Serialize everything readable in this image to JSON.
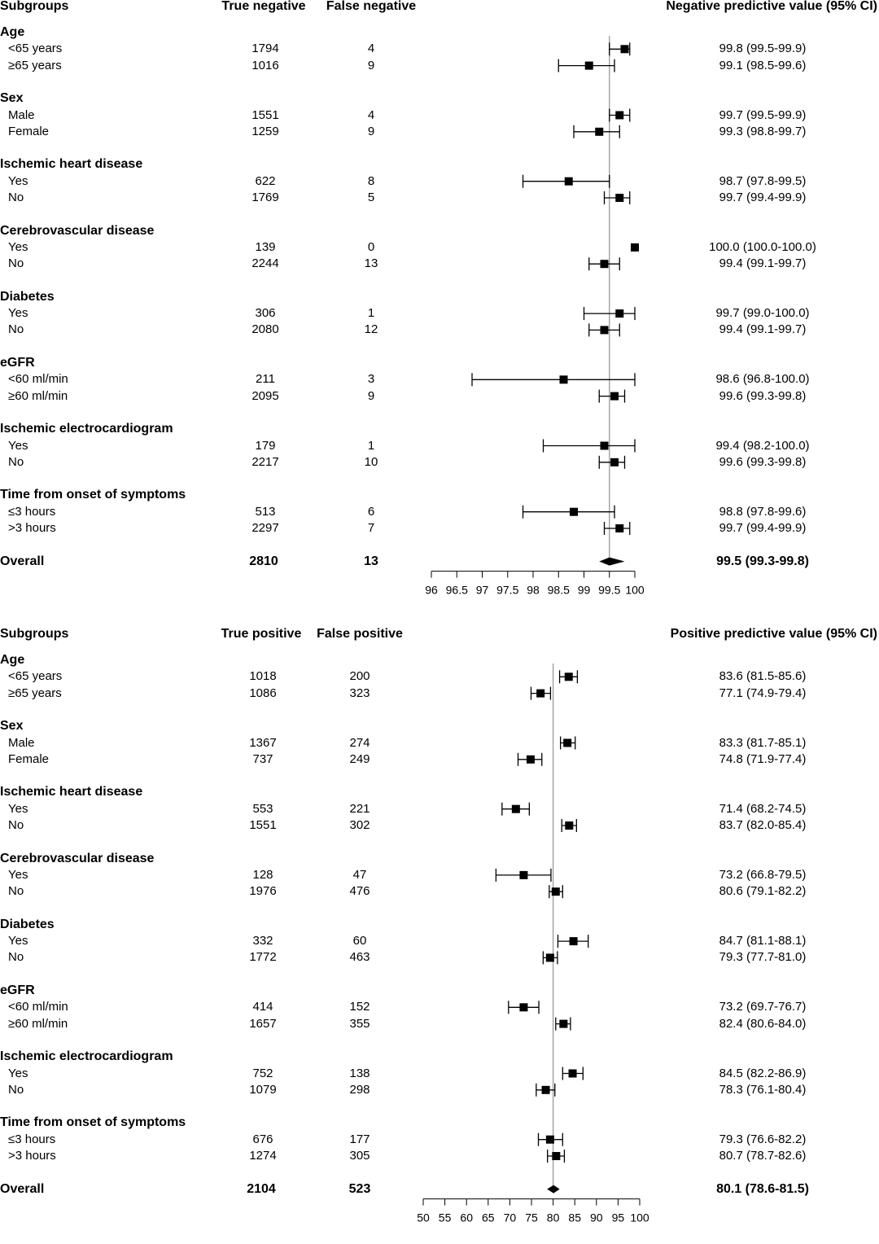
{
  "chart_data": [
    {
      "type": "forest",
      "headers": {
        "subgroups": "Subgroups",
        "col1": "True negative",
        "col2": "False negative",
        "estimate": "Negative predictive value (95% CI)"
      },
      "xlim": [
        96,
        100
      ],
      "reference_line": 99.5,
      "ticks": [
        "96",
        "96.5",
        "97",
        "97.5",
        "98",
        "98.5",
        "99",
        "99.5",
        "100"
      ],
      "tick_values": [
        96,
        96.5,
        97,
        97.5,
        98,
        98.5,
        99,
        99.5,
        100
      ],
      "groups": [
        {
          "name": "Age",
          "rows": [
            {
              "label": "<65 years",
              "n1": "1794",
              "n2": "4",
              "est": 99.8,
              "lo": 99.5,
              "hi": 99.9,
              "text": "99.8 (99.5-99.9)"
            },
            {
              "label": "≥65 years",
              "n1": "1016",
              "n2": "9",
              "est": 99.1,
              "lo": 98.5,
              "hi": 99.6,
              "text": "99.1 (98.5-99.6)"
            }
          ]
        },
        {
          "name": "Sex",
          "rows": [
            {
              "label": "Male",
              "n1": "1551",
              "n2": "4",
              "est": 99.7,
              "lo": 99.5,
              "hi": 99.9,
              "text": "99.7 (99.5-99.9)"
            },
            {
              "label": "Female",
              "n1": "1259",
              "n2": "9",
              "est": 99.3,
              "lo": 98.8,
              "hi": 99.7,
              "text": "99.3 (98.8-99.7)"
            }
          ]
        },
        {
          "name": "Ischemic heart disease",
          "rows": [
            {
              "label": "Yes",
              "n1": "622",
              "n2": "8",
              "est": 98.7,
              "lo": 97.8,
              "hi": 99.5,
              "text": "98.7 (97.8-99.5)"
            },
            {
              "label": "No",
              "n1": "1769",
              "n2": "5",
              "est": 99.7,
              "lo": 99.4,
              "hi": 99.9,
              "text": "99.7 (99.4-99.9)"
            }
          ]
        },
        {
          "name": "Cerebrovascular disease",
          "rows": [
            {
              "label": "Yes",
              "n1": "139",
              "n2": "0",
              "est": 100.0,
              "lo": 100.0,
              "hi": 100.0,
              "text": "100.0 (100.0-100.0)"
            },
            {
              "label": "No",
              "n1": "2244",
              "n2": "13",
              "est": 99.4,
              "lo": 99.1,
              "hi": 99.7,
              "text": "99.4 (99.1-99.7)"
            }
          ]
        },
        {
          "name": "Diabetes",
          "rows": [
            {
              "label": "Yes",
              "n1": "306",
              "n2": "1",
              "est": 99.7,
              "lo": 99.0,
              "hi": 100.0,
              "text": "99.7 (99.0-100.0)"
            },
            {
              "label": "No",
              "n1": "2080",
              "n2": "12",
              "est": 99.4,
              "lo": 99.1,
              "hi": 99.7,
              "text": "99.4 (99.1-99.7)"
            }
          ]
        },
        {
          "name": "eGFR",
          "rows": [
            {
              "label": "<60 ml/min",
              "n1": "211",
              "n2": "3",
              "est": 98.6,
              "lo": 96.8,
              "hi": 100.0,
              "text": "98.6 (96.8-100.0)"
            },
            {
              "label": "≥60 ml/min",
              "n1": "2095",
              "n2": "9",
              "est": 99.6,
              "lo": 99.3,
              "hi": 99.8,
              "text": "99.6 (99.3-99.8)"
            }
          ]
        },
        {
          "name": "Ischemic electrocardiogram",
          "rows": [
            {
              "label": "Yes",
              "n1": "179",
              "n2": "1",
              "est": 99.4,
              "lo": 98.2,
              "hi": 100.0,
              "text": "99.4 (98.2-100.0)"
            },
            {
              "label": "No",
              "n1": "2217",
              "n2": "10",
              "est": 99.6,
              "lo": 99.3,
              "hi": 99.8,
              "text": "99.6 (99.3-99.8)"
            }
          ]
        },
        {
          "name": "Time from onset of symptoms",
          "rows": [
            {
              "label": "≤3 hours",
              "n1": "513",
              "n2": "6",
              "est": 98.8,
              "lo": 97.8,
              "hi": 99.6,
              "text": "98.8 (97.8-99.6)"
            },
            {
              "label": ">3 hours",
              "n1": "2297",
              "n2": "7",
              "est": 99.7,
              "lo": 99.4,
              "hi": 99.9,
              "text": "99.7 (99.4-99.9)"
            }
          ]
        }
      ],
      "overall": {
        "label": "Overall",
        "n1": "2810",
        "n2": "13",
        "est": 99.5,
        "lo": 99.3,
        "hi": 99.8,
        "text": "99.5 (99.3-99.8)"
      }
    },
    {
      "type": "forest",
      "headers": {
        "subgroups": "Subgroups",
        "col1": "True positive",
        "col2": "False positive",
        "estimate": "Positive predictive value (95% CI)"
      },
      "xlim": [
        50,
        100
      ],
      "reference_line": 80,
      "ticks": [
        "50",
        "55",
        "60",
        "65",
        "70",
        "75",
        "80",
        "85",
        "90",
        "95",
        "100"
      ],
      "tick_values": [
        50,
        55,
        60,
        65,
        70,
        75,
        80,
        85,
        90,
        95,
        100
      ],
      "groups": [
        {
          "name": "Age",
          "rows": [
            {
              "label": "<65 years",
              "n1": "1018",
              "n2": "200",
              "est": 83.6,
              "lo": 81.5,
              "hi": 85.6,
              "text": "83.6 (81.5-85.6)"
            },
            {
              "label": "≥65 years",
              "n1": "1086",
              "n2": "323",
              "est": 77.1,
              "lo": 74.9,
              "hi": 79.4,
              "text": "77.1 (74.9-79.4)"
            }
          ]
        },
        {
          "name": "Sex",
          "rows": [
            {
              "label": "Male",
              "n1": "1367",
              "n2": "274",
              "est": 83.3,
              "lo": 81.7,
              "hi": 85.1,
              "text": "83.3 (81.7-85.1)"
            },
            {
              "label": "Female",
              "n1": "737",
              "n2": "249",
              "est": 74.8,
              "lo": 71.9,
              "hi": 77.4,
              "text": "74.8 (71.9-77.4)"
            }
          ]
        },
        {
          "name": "Ischemic heart disease",
          "rows": [
            {
              "label": "Yes",
              "n1": "553",
              "n2": "221",
              "est": 71.4,
              "lo": 68.2,
              "hi": 74.5,
              "text": "71.4 (68.2-74.5)"
            },
            {
              "label": "No",
              "n1": "1551",
              "n2": "302",
              "est": 83.7,
              "lo": 82.0,
              "hi": 85.4,
              "text": "83.7 (82.0-85.4)"
            }
          ]
        },
        {
          "name": "Cerebrovascular disease",
          "rows": [
            {
              "label": "Yes",
              "n1": "128",
              "n2": "47",
              "est": 73.2,
              "lo": 66.8,
              "hi": 79.5,
              "text": "73.2 (66.8-79.5)"
            },
            {
              "label": "No",
              "n1": "1976",
              "n2": "476",
              "est": 80.6,
              "lo": 79.1,
              "hi": 82.2,
              "text": "80.6 (79.1-82.2)"
            }
          ]
        },
        {
          "name": "Diabetes",
          "rows": [
            {
              "label": "Yes",
              "n1": "332",
              "n2": "60",
              "est": 84.7,
              "lo": 81.1,
              "hi": 88.1,
              "text": "84.7 (81.1-88.1)"
            },
            {
              "label": "No",
              "n1": "1772",
              "n2": "463",
              "est": 79.3,
              "lo": 77.7,
              "hi": 81.0,
              "text": "79.3 (77.7-81.0)"
            }
          ]
        },
        {
          "name": "eGFR",
          "rows": [
            {
              "label": "<60 ml/min",
              "n1": "414",
              "n2": "152",
              "est": 73.2,
              "lo": 69.7,
              "hi": 76.7,
              "text": "73.2 (69.7-76.7)"
            },
            {
              "label": "≥60 ml/min",
              "n1": "1657",
              "n2": "355",
              "est": 82.4,
              "lo": 80.6,
              "hi": 84.0,
              "text": "82.4 (80.6-84.0)"
            }
          ]
        },
        {
          "name": "Ischemic electrocardiogram",
          "rows": [
            {
              "label": "Yes",
              "n1": "752",
              "n2": "138",
              "est": 84.5,
              "lo": 82.2,
              "hi": 86.9,
              "text": "84.5 (82.2-86.9)"
            },
            {
              "label": "No",
              "n1": "1079",
              "n2": "298",
              "est": 78.3,
              "lo": 76.1,
              "hi": 80.4,
              "text": "78.3 (76.1-80.4)"
            }
          ]
        },
        {
          "name": "Time from onset of symptoms",
          "rows": [
            {
              "label": "≤3 hours",
              "n1": "676",
              "n2": "177",
              "est": 79.3,
              "lo": 76.6,
              "hi": 82.2,
              "text": "79.3 (76.6-82.2)"
            },
            {
              "label": ">3 hours",
              "n1": "1274",
              "n2": "305",
              "est": 80.7,
              "lo": 78.7,
              "hi": 82.6,
              "text": "80.7 (78.7-82.6)"
            }
          ]
        }
      ],
      "overall": {
        "label": "Overall",
        "n1": "2104",
        "n2": "523",
        "est": 80.1,
        "lo": 78.6,
        "hi": 81.5,
        "text": "80.1 (78.6-81.5)"
      }
    }
  ]
}
